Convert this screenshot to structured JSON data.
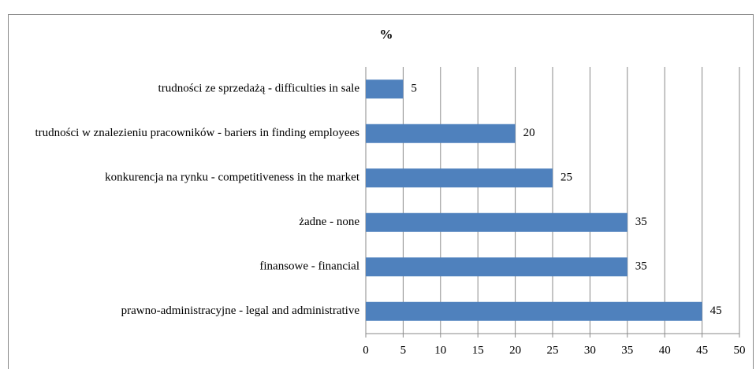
{
  "chart_data": {
    "type": "bar",
    "orientation": "horizontal",
    "title": "%",
    "categories": [
      "trudności ze sprzedażą - difficulties in sale",
      "trudności w znalezieniu pracowników - bariers in finding employees",
      "konkurencja na rynku - competitiveness in the market",
      "żadne - none",
      "finansowe - financial",
      "prawno-administracyjne - legal and administrative"
    ],
    "values": [
      5,
      20,
      25,
      35,
      35,
      45
    ],
    "color": "#4f81bd",
    "xlim": [
      0,
      50
    ],
    "xticks": [
      0,
      5,
      10,
      15,
      20,
      25,
      30,
      35,
      40,
      45,
      50
    ],
    "grid": true
  }
}
